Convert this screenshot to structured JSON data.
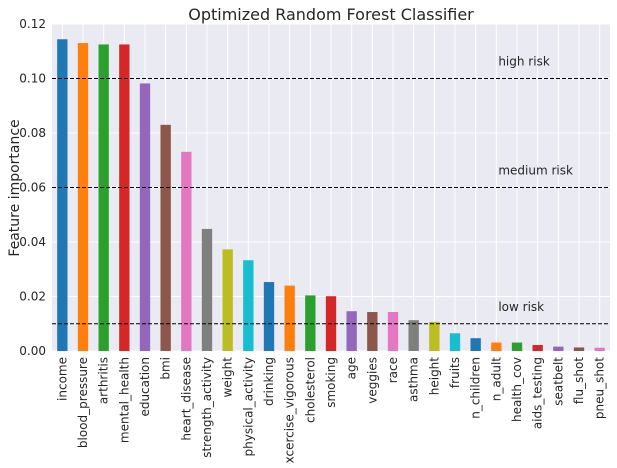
{
  "chart_data": {
    "type": "bar",
    "title": "Optimized Random Forest Classifier",
    "xlabel": "",
    "ylabel": "Feature importance",
    "ylim": [
      0,
      0.12
    ],
    "yticks": [
      "0.00",
      "0.02",
      "0.04",
      "0.06",
      "0.08",
      "0.10",
      "0.12"
    ],
    "grid": true,
    "categories": [
      "income",
      "blood_pressure",
      "arthritis",
      "mental_health",
      "education",
      "bmi",
      "heart_disease",
      "strength_activity",
      "weight",
      "physical_activity",
      "drinking",
      "excercise_vigorous",
      "cholesterol",
      "smoking",
      "age",
      "veggies",
      "race",
      "asthma",
      "height",
      "fruits",
      "n_children",
      "n_adult",
      "health_cov",
      "aids_testing",
      "seatbelt",
      "flu_shot",
      "pneu_shot"
    ],
    "values": [
      0.1144,
      0.113,
      0.1125,
      0.1125,
      0.0982,
      0.083,
      0.0731,
      0.0448,
      0.0373,
      0.0333,
      0.0253,
      0.024,
      0.0204,
      0.0201,
      0.0146,
      0.0143,
      0.0143,
      0.0113,
      0.0107,
      0.0065,
      0.0047,
      0.0031,
      0.0031,
      0.0022,
      0.0016,
      0.0013,
      0.0012
    ],
    "colors": [
      "#1f77b4",
      "#ff7f0e",
      "#2ca02c",
      "#d62728",
      "#9467bd",
      "#8c564b",
      "#e377c2",
      "#7f7f7f",
      "#bcbd22",
      "#17becf"
    ],
    "thresholds": [
      {
        "label": "high risk",
        "value": 0.1
      },
      {
        "label": "medium risk",
        "value": 0.06
      },
      {
        "label": "low risk",
        "value": 0.01
      }
    ]
  }
}
